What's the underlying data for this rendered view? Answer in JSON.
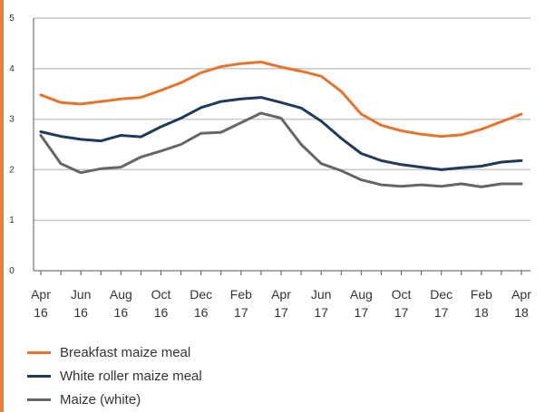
{
  "colors": {
    "accent_rule": "#e8823a",
    "grid": "#c8c8c8",
    "axis": "#555555"
  },
  "chart_data": {
    "type": "line",
    "title": "",
    "xlabel": "",
    "ylabel": "",
    "ylim": [
      0,
      5
    ],
    "yticks": [
      "0",
      "1",
      "2",
      "3",
      "4",
      "5"
    ],
    "x_tick_labels": [
      [
        "Apr",
        "16"
      ],
      [
        "Jun",
        "16"
      ],
      [
        "Aug",
        "16"
      ],
      [
        "Oct",
        "16"
      ],
      [
        "Dec",
        "16"
      ],
      [
        "Feb",
        "17"
      ],
      [
        "Apr",
        "17"
      ],
      [
        "Jun",
        "17"
      ],
      [
        "Aug",
        "17"
      ],
      [
        "Oct",
        "17"
      ],
      [
        "Dec",
        "17"
      ],
      [
        "Feb",
        "18"
      ],
      [
        "Apr",
        "18"
      ]
    ],
    "x": [
      "Apr 16",
      "May 16",
      "Jun 16",
      "Jul 16",
      "Aug 16",
      "Sep 16",
      "Oct 16",
      "Nov 16",
      "Dec 16",
      "Jan 17",
      "Feb 17",
      "Mar 17",
      "Apr 17",
      "May 17",
      "Jun 17",
      "Jul 17",
      "Aug 17",
      "Sep 17",
      "Oct 17",
      "Nov 17",
      "Dec 17",
      "Jan 18",
      "Feb 18",
      "Mar 18",
      "Apr 18"
    ],
    "grid": true,
    "legend_position": "bottom",
    "series": [
      {
        "name": "Breakfast maize meal",
        "color": "#e8732a",
        "values": [
          3.48,
          3.33,
          3.3,
          3.35,
          3.4,
          3.43,
          3.57,
          3.72,
          3.92,
          4.04,
          4.1,
          4.13,
          4.03,
          3.95,
          3.85,
          3.55,
          3.1,
          2.88,
          2.77,
          2.7,
          2.66,
          2.69,
          2.8,
          2.95,
          3.1
        ]
      },
      {
        "name": "White roller maize meal",
        "color": "#1f3b5c",
        "values": [
          2.75,
          2.66,
          2.6,
          2.57,
          2.68,
          2.65,
          2.85,
          3.02,
          3.23,
          3.35,
          3.4,
          3.43,
          3.33,
          3.22,
          2.96,
          2.62,
          2.32,
          2.18,
          2.1,
          2.05,
          2.0,
          2.04,
          2.07,
          2.15,
          2.18
        ]
      },
      {
        "name": "Maize (white)",
        "color": "#666666",
        "values": [
          2.68,
          2.12,
          1.94,
          2.02,
          2.05,
          2.25,
          2.37,
          2.5,
          2.72,
          2.74,
          2.93,
          3.12,
          3.02,
          2.5,
          2.12,
          1.98,
          1.8,
          1.7,
          1.67,
          1.7,
          1.67,
          1.72,
          1.66,
          1.72,
          1.72
        ]
      }
    ]
  }
}
